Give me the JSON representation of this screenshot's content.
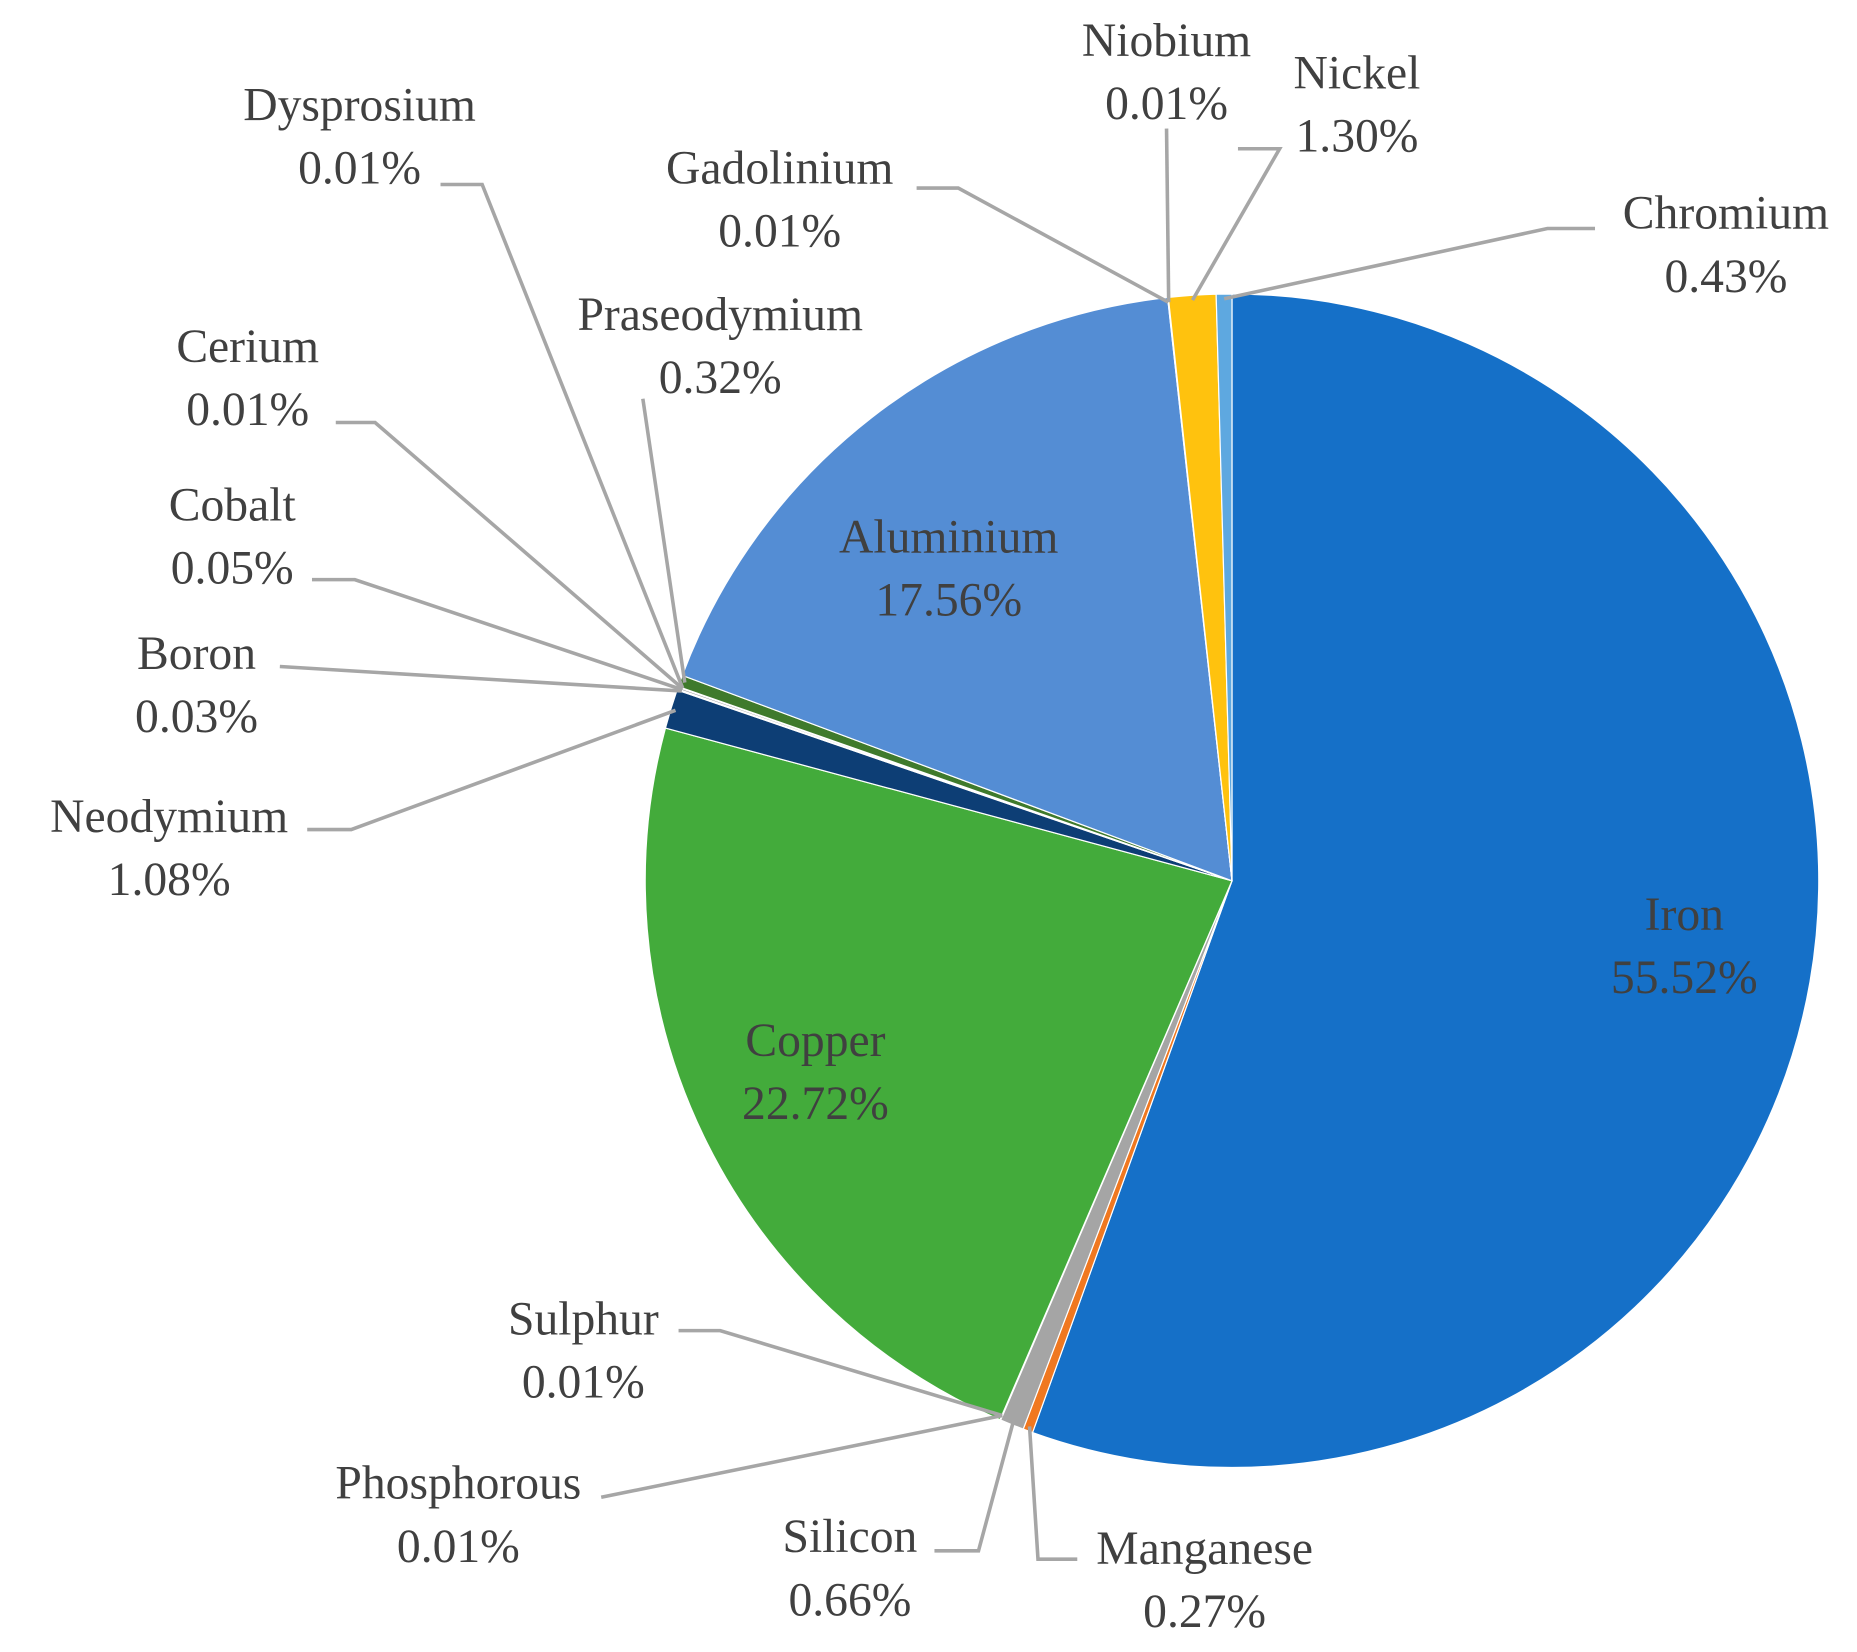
{
  "chart_data": {
    "type": "pie",
    "categories": [
      "Iron",
      "Manganese",
      "Silicon",
      "Phosphorous",
      "Sulphur",
      "Copper",
      "Neodymium",
      "Boron",
      "Cobalt",
      "Cerium",
      "Dysprosium",
      "Praseodymium",
      "Aluminium",
      "Gadolinium",
      "Niobium",
      "Nickel",
      "Chromium"
    ],
    "values": [
      55.52,
      0.27,
      0.66,
      0.01,
      0.01,
      22.72,
      1.08,
      0.03,
      0.05,
      0.01,
      0.01,
      0.32,
      17.56,
      0.01,
      0.01,
      1.3,
      0.43
    ],
    "value_labels": [
      "55.52%",
      "0.27%",
      "0.66%",
      "0.01%",
      "0.01%",
      "22.72%",
      "1.08%",
      "0.03%",
      "0.05%",
      "0.01%",
      "0.01%",
      "0.32%",
      "17.56%",
      "0.01%",
      "0.01%",
      "1.30%",
      "0.43%"
    ],
    "colors": [
      "#1570c8",
      "#f07820",
      "#a5a5a5",
      "#a5a5a5",
      "#a5a5a5",
      "#43ab3b",
      "#0d3e75",
      "#2e6b22",
      "#9a9a9a",
      "#8a8a8a",
      "#8a8a8a",
      "#3f7a2c",
      "#548dd4",
      "#a5a5a5",
      "#a5a5a5",
      "#ffc20e",
      "#5ea8e0"
    ]
  }
}
